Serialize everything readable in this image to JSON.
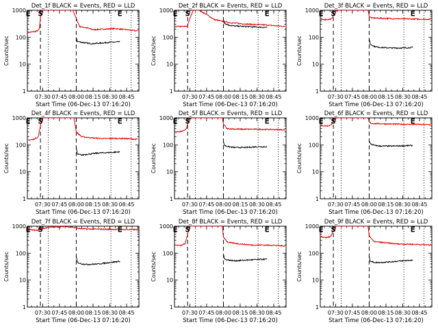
{
  "figure": {
    "xlabel": "Start Time (06-Dec-13 07:16:20)",
    "ylabel": "Counts/sec",
    "title_suffix": "BLACK = Events, RED = LLD",
    "xtick_labels": [
      "07:30",
      "07:45",
      "08:00",
      "08:15",
      "08:30",
      "08:45"
    ],
    "ytick_labels": [
      "1",
      "10",
      "100",
      "1000"
    ],
    "colors": {
      "events": "#000000",
      "lld": "#e00000"
    }
  },
  "chart_data": [
    {
      "type": "line",
      "panel": "Det_1f",
      "title": "Det_1f BLACK = Events, RED = LLD",
      "xlabel": "Start Time (06-Dec-13 07:16:20)",
      "ylabel": "Counts/sec",
      "yscale": "log",
      "ylim": [
        1,
        1000
      ],
      "xlim": [
        "07:16:20",
        "08:56"
      ],
      "markers": [
        {
          "label": "E",
          "x": "07:17"
        },
        {
          "label": "S",
          "x": "07:28"
        },
        {
          "label": "E",
          "x": "08:39"
        }
      ],
      "dashed_lines": [
        "07:28",
        "08:00"
      ],
      "dotted_lines": [
        "07:35",
        "08:31",
        "08:49"
      ],
      "series": [
        {
          "name": "RED = LLD",
          "x": [
            "07:17",
            "07:22",
            "07:25",
            "07:27",
            "07:28",
            "07:29",
            "07:32",
            "07:45",
            "07:52",
            "07:57",
            "08:00",
            "08:03",
            "08:10",
            "08:15",
            "08:25",
            "08:35",
            "08:45",
            "08:55"
          ],
          "y": [
            150,
            160,
            170,
            200,
            500,
            1000,
            1000,
            1000,
            1000,
            1000,
            500,
            250,
            220,
            190,
            200,
            210,
            190,
            170
          ]
        },
        {
          "name": "BLACK = Events",
          "x": [
            "08:00",
            "08:01",
            "08:05",
            "08:10",
            "08:15",
            "08:20",
            "08:25",
            "08:30",
            "08:35",
            "08:39"
          ],
          "y": [
            100,
            70,
            65,
            60,
            58,
            60,
            62,
            65,
            66,
            68
          ]
        }
      ]
    },
    {
      "type": "line",
      "panel": "Det_2f",
      "title": "Det_2f BLACK = Events, RED = LLD",
      "xlabel": "Start Time (06-Dec-13 07:16:20)",
      "ylabel": "Counts/sec",
      "yscale": "log",
      "ylim": [
        1,
        1000
      ],
      "xlim": [
        "07:16:20",
        "08:56"
      ],
      "markers": [
        {
          "label": "E",
          "x": "07:17"
        },
        {
          "label": "S",
          "x": "07:28"
        },
        {
          "label": "E",
          "x": "08:39"
        }
      ],
      "dashed_lines": [
        "07:28",
        "08:00"
      ],
      "dotted_lines": [
        "07:35",
        "08:31",
        "08:49"
      ],
      "series": [
        {
          "name": "RED = LLD",
          "x": [
            "07:17",
            "07:25",
            "07:28",
            "07:30",
            "07:33",
            "07:38",
            "07:45",
            "07:52",
            "07:58",
            "08:00",
            "08:05",
            "08:15",
            "08:25",
            "08:35",
            "08:45",
            "08:55"
          ],
          "y": [
            250,
            250,
            260,
            500,
            1000,
            1000,
            700,
            450,
            400,
            380,
            350,
            320,
            300,
            290,
            270,
            250
          ]
        },
        {
          "name": "BLACK = Events",
          "x": [
            "08:00",
            "08:01",
            "08:05",
            "08:10",
            "08:20",
            "08:30",
            "08:39"
          ],
          "y": [
            450,
            330,
            280,
            260,
            250,
            240,
            230
          ]
        }
      ]
    },
    {
      "type": "line",
      "panel": "Det_3f",
      "title": "Det_3f BLACK = Events, RED = LLD",
      "xlabel": "Start Time (06-Dec-13 07:16:20)",
      "ylabel": "Counts/sec",
      "yscale": "log",
      "ylim": [
        1,
        1000
      ],
      "xlim": [
        "07:16:20",
        "08:56"
      ],
      "markers": [
        {
          "label": "E",
          "x": "07:17"
        },
        {
          "label": "S",
          "x": "07:28"
        },
        {
          "label": "E",
          "x": "08:39"
        }
      ],
      "dashed_lines": [
        "07:28",
        "08:00"
      ],
      "dotted_lines": [
        "07:35",
        "08:31",
        "08:49"
      ],
      "series": [
        {
          "name": "RED = LLD",
          "x": [
            "07:17",
            "07:25",
            "07:27",
            "07:29",
            "07:33",
            "07:45",
            "07:55",
            "07:59",
            "08:00",
            "08:02",
            "08:15",
            "08:30",
            "08:45",
            "08:55"
          ],
          "y": [
            450,
            460,
            500,
            900,
            1000,
            1000,
            1000,
            1000,
            600,
            520,
            500,
            480,
            470,
            460
          ]
        },
        {
          "name": "BLACK = Events",
          "x": [
            "08:00",
            "08:01",
            "08:05",
            "08:10",
            "08:20",
            "08:30",
            "08:39"
          ],
          "y": [
            90,
            55,
            45,
            42,
            40,
            40,
            42
          ]
        }
      ]
    },
    {
      "type": "line",
      "panel": "Det_4f",
      "title": "Det_4f BLACK = Events, RED = LLD",
      "xlabel": "Start Time (06-Dec-13 07:16:20)",
      "ylabel": "Counts/sec",
      "yscale": "log",
      "ylim": [
        1,
        1000
      ],
      "xlim": [
        "07:16:20",
        "08:56"
      ],
      "markers": [
        {
          "label": "E",
          "x": "07:17"
        },
        {
          "label": "S",
          "x": "07:28"
        },
        {
          "label": "E",
          "x": "08:39"
        }
      ],
      "dashed_lines": [
        "07:28",
        "08:00"
      ],
      "dotted_lines": [
        "07:35",
        "08:31",
        "08:49"
      ],
      "series": [
        {
          "name": "RED = LLD",
          "x": [
            "07:17",
            "07:22",
            "07:26",
            "07:28",
            "07:30",
            "07:45",
            "07:55",
            "07:58",
            "08:00",
            "08:05",
            "08:15",
            "08:25",
            "08:35",
            "08:45",
            "08:55"
          ],
          "y": [
            150,
            160,
            200,
            500,
            1000,
            1000,
            1000,
            1000,
            300,
            200,
            180,
            170,
            175,
            170,
            160
          ]
        },
        {
          "name": "BLACK = Events",
          "x": [
            "08:00",
            "08:01",
            "08:05",
            "08:10",
            "08:20",
            "08:30",
            "08:39"
          ],
          "y": [
            80,
            45,
            42,
            45,
            50,
            52,
            55
          ]
        }
      ]
    },
    {
      "type": "line",
      "panel": "Det_5f",
      "title": "Det_5f BLACK = Events, RED = LLD",
      "xlabel": "Start Time (06-Dec-13 07:16:20)",
      "ylabel": "Counts/sec",
      "yscale": "log",
      "ylim": [
        1,
        1000
      ],
      "xlim": [
        "07:16:20",
        "08:56"
      ],
      "markers": [
        {
          "label": "E",
          "x": "07:17"
        },
        {
          "label": "S",
          "x": "07:28"
        },
        {
          "label": "E",
          "x": "08:39"
        }
      ],
      "dashed_lines": [
        "07:28",
        "08:00"
      ],
      "dotted_lines": [
        "07:35",
        "08:31",
        "08:49"
      ],
      "series": [
        {
          "name": "RED = LLD",
          "x": [
            "07:17",
            "07:24",
            "07:27",
            "07:29",
            "07:33",
            "07:45",
            "07:55",
            "07:59",
            "08:00",
            "08:03",
            "08:15",
            "08:30",
            "08:45",
            "08:55"
          ],
          "y": [
            300,
            320,
            400,
            900,
            1000,
            1000,
            1000,
            1000,
            600,
            400,
            380,
            380,
            370,
            360
          ]
        },
        {
          "name": "BLACK = Events",
          "x": [
            "08:00",
            "08:01",
            "08:05",
            "08:10",
            "08:20",
            "08:30",
            "08:39"
          ],
          "y": [
            130,
            95,
            85,
            80,
            80,
            85,
            85
          ]
        }
      ]
    },
    {
      "type": "line",
      "panel": "Det_6f",
      "title": "Det_6f BLACK = Events, RED = LLD",
      "xlabel": "Start Time (06-Dec-13 07:16:20)",
      "ylabel": "Counts/sec",
      "yscale": "log",
      "ylim": [
        1,
        1000
      ],
      "xlim": [
        "07:16:20",
        "08:56"
      ],
      "markers": [
        {
          "label": "E",
          "x": "07:17"
        },
        {
          "label": "S",
          "x": "07:28"
        },
        {
          "label": "E",
          "x": "08:39"
        }
      ],
      "dashed_lines": [
        "07:28",
        "08:00"
      ],
      "dotted_lines": [
        "07:35",
        "08:31",
        "08:49"
      ],
      "series": [
        {
          "name": "RED = LLD",
          "x": [
            "07:17",
            "07:23",
            "07:26",
            "07:28",
            "07:31",
            "07:45",
            "07:55",
            "07:59",
            "08:00",
            "08:02",
            "08:15",
            "08:30",
            "08:45",
            "08:55"
          ],
          "y": [
            520,
            500,
            550,
            800,
            1000,
            1000,
            1000,
            1000,
            700,
            620,
            600,
            580,
            570,
            560
          ]
        },
        {
          "name": "BLACK = Events",
          "x": [
            "08:00",
            "08:01",
            "08:05",
            "08:10",
            "08:20",
            "08:30",
            "08:39"
          ],
          "y": [
            140,
            110,
            95,
            90,
            90,
            92,
            95
          ]
        }
      ]
    },
    {
      "type": "line",
      "panel": "Det_7f",
      "title": "Det_7f BLACK = Events, RED = LLD",
      "xlabel": "Start Time (06-Dec-13 07:16:20)",
      "ylabel": "Counts/sec",
      "yscale": "log",
      "ylim": [
        1,
        1000
      ],
      "xlim": [
        "07:16:20",
        "08:56"
      ],
      "markers": [
        {
          "label": "E",
          "x": "07:17"
        },
        {
          "label": "S",
          "x": "07:28"
        },
        {
          "label": "E",
          "x": "08:39"
        }
      ],
      "dashed_lines": [
        "07:28",
        "08:00"
      ],
      "dotted_lines": [
        "07:35",
        "08:31",
        "08:49"
      ],
      "series": [
        {
          "name": "RED = LLD",
          "x": [
            "07:17",
            "07:25",
            "07:28",
            "07:35",
            "07:45",
            "07:55",
            "08:00",
            "08:05",
            "08:15",
            "08:25",
            "08:35",
            "08:45",
            "08:55"
          ],
          "y": [
            750,
            700,
            800,
            900,
            950,
            950,
            850,
            800,
            780,
            770,
            760,
            750,
            750
          ]
        },
        {
          "name": "BLACK = Events",
          "x": [
            "08:00",
            "08:01",
            "08:05",
            "08:10",
            "08:20",
            "08:30",
            "08:39"
          ],
          "y": [
            75,
            45,
            40,
            38,
            40,
            45,
            50
          ]
        }
      ]
    },
    {
      "type": "line",
      "panel": "Det_8f",
      "title": "Det_8f BLACK = Events, RED = LLD",
      "xlabel": "Start Time (06-Dec-13 07:16:20)",
      "ylabel": "Counts/sec",
      "yscale": "log",
      "ylim": [
        1,
        1000
      ],
      "xlim": [
        "07:16:20",
        "08:56"
      ],
      "markers": [
        {
          "label": "E",
          "x": "07:17"
        },
        {
          "label": "S",
          "x": "07:28"
        },
        {
          "label": "E",
          "x": "08:39"
        }
      ],
      "dashed_lines": [
        "07:28",
        "08:00"
      ],
      "dotted_lines": [
        "07:35",
        "08:31",
        "08:49"
      ],
      "series": [
        {
          "name": "RED = LLD",
          "x": [
            "07:17",
            "07:22",
            "07:26",
            "07:28",
            "07:30",
            "07:45",
            "07:55",
            "07:59",
            "08:00",
            "08:04",
            "08:15",
            "08:25",
            "08:35",
            "08:45",
            "08:55"
          ],
          "y": [
            200,
            190,
            230,
            500,
            1000,
            1000,
            1000,
            1000,
            400,
            250,
            220,
            200,
            200,
            195,
            185
          ]
        },
        {
          "name": "BLACK = Events",
          "x": [
            "08:00",
            "08:01",
            "08:05",
            "08:10",
            "08:20",
            "08:30",
            "08:39"
          ],
          "y": [
            90,
            60,
            55,
            52,
            55,
            58,
            60
          ]
        }
      ]
    },
    {
      "type": "line",
      "panel": "Det_9f",
      "title": "Det_9f BLACK = Events, RED = LLD",
      "xlabel": "Start Time (06-Dec-13 07:16:20)",
      "ylabel": "Counts/sec",
      "yscale": "log",
      "ylim": [
        1,
        1000
      ],
      "xlim": [
        "07:16:20",
        "08:56"
      ],
      "markers": [
        {
          "label": "E",
          "x": "07:17"
        },
        {
          "label": "S",
          "x": "07:28"
        },
        {
          "label": "E",
          "x": "08:39"
        }
      ],
      "dashed_lines": [
        "07:28",
        "08:00"
      ],
      "dotted_lines": [
        "07:35",
        "08:31",
        "08:49"
      ],
      "series": [
        {
          "name": "RED = LLD",
          "x": [
            "07:17",
            "07:22",
            "07:26",
            "07:28",
            "07:30",
            "07:45",
            "07:55",
            "07:59",
            "08:00",
            "08:04",
            "08:15",
            "08:25",
            "08:35",
            "08:45",
            "08:55"
          ],
          "y": [
            400,
            380,
            420,
            700,
            1000,
            1000,
            1000,
            1000,
            450,
            270,
            240,
            220,
            215,
            210,
            200
          ]
        },
        {
          "name": "BLACK = Events",
          "x": [
            "08:00",
            "08:01",
            "08:05",
            "08:10",
            "08:20",
            "08:30",
            "08:39"
          ],
          "y": [
            80,
            50,
            45,
            45,
            48,
            52,
            55
          ]
        }
      ]
    }
  ]
}
